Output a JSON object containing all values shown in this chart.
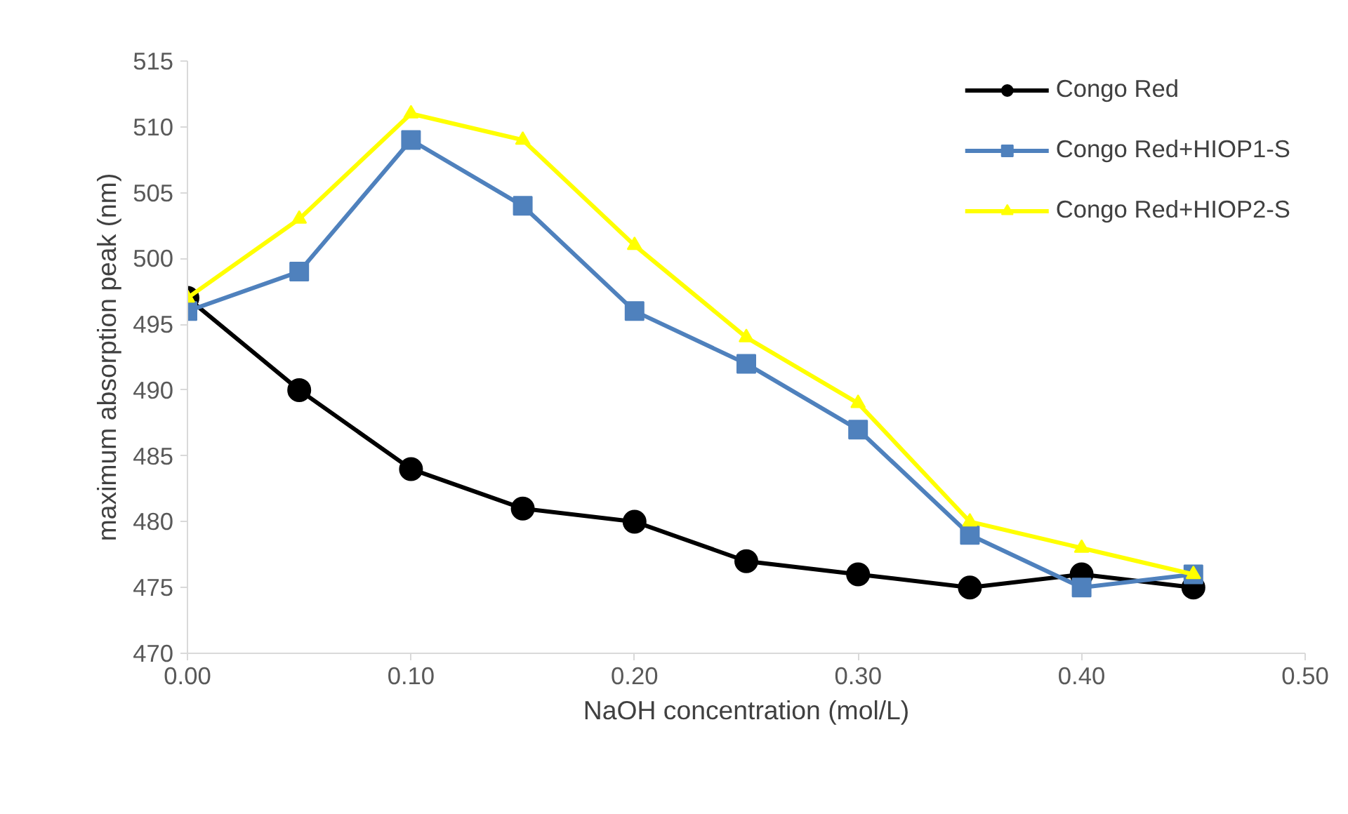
{
  "chart_data": {
    "type": "line",
    "xlabel": "NaOH concentration (mol/L)",
    "ylabel": "maximum absorption peak (nm)",
    "x": [
      0,
      0.05,
      0.1,
      0.15,
      0.2,
      0.25,
      0.3,
      0.35,
      0.4,
      0.45
    ],
    "xlim": [
      0,
      0.5
    ],
    "xticks": [
      {
        "value": 0,
        "label": "0.00"
      },
      {
        "value": 0.1,
        "label": "0.10"
      },
      {
        "value": 0.2,
        "label": "0.20"
      },
      {
        "value": 0.3,
        "label": "0.30"
      },
      {
        "value": 0.4,
        "label": "0.40"
      },
      {
        "value": 0.5,
        "label": "0.50"
      }
    ],
    "ylim": [
      470,
      515
    ],
    "yticks": [
      470,
      475,
      480,
      485,
      490,
      495,
      500,
      505,
      510,
      515
    ],
    "grid": false,
    "legend": "top right",
    "line_style": "solid",
    "series": [
      {
        "name": "Congo Red",
        "color": "#000000",
        "marker": "circle",
        "values": [
          497,
          490,
          484,
          481,
          480,
          477,
          476,
          475,
          476,
          475
        ]
      },
      {
        "name": "Congo Red+HIOP1-S",
        "color": "#4f81bd",
        "marker": "square",
        "values": [
          496,
          499,
          509,
          504,
          496,
          492,
          487,
          479,
          475,
          476
        ]
      },
      {
        "name": "Congo Red+HIOP2-S",
        "color": "#ffff00",
        "marker": "triangle",
        "values": [
          497,
          503,
          511,
          509,
          501,
          494,
          489,
          480,
          478,
          476
        ]
      }
    ]
  }
}
